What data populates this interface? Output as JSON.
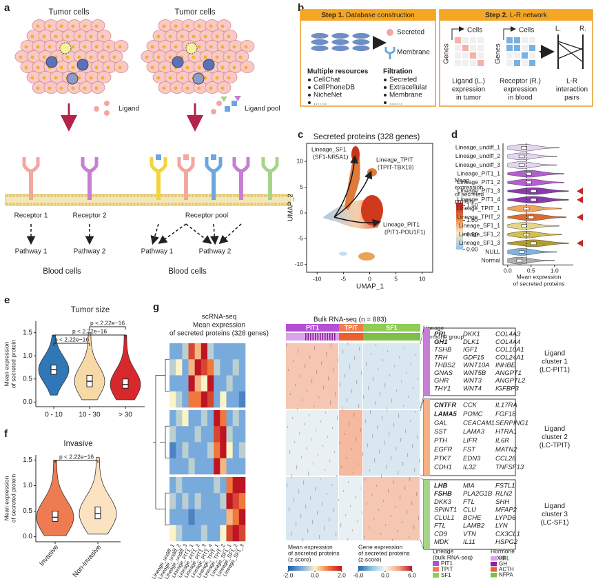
{
  "panel_a": {
    "label": "a",
    "left_title": "Tumor cells",
    "right_title": "Tumor cells",
    "ligand": "Ligand",
    "ligand_pool": "Ligand pool",
    "receptors": [
      "Receptor 1",
      "Receptor 2"
    ],
    "receptor_pool": "Receptor pool",
    "pathways_left": [
      "Pathway 1",
      "Pathway 2"
    ],
    "pathways_right": [
      "Pathway 1",
      "Pathway 2"
    ],
    "blood_left": "Blood cells",
    "blood_right": "Blood cells"
  },
  "panel_b": {
    "label": "b",
    "step1": {
      "prefix": "Step 1.",
      "title": "Database construction"
    },
    "secreted": "Secreted",
    "membrane": "Membrane",
    "resources_title": "Multiple resources",
    "resources": [
      "CellChat",
      "CellPhoneDB",
      "NicheNet",
      "......."
    ],
    "filtration_title": "Filtration",
    "filtration": [
      "Secreted",
      "Extracellular",
      "Membrane",
      "......."
    ],
    "step2": {
      "prefix": "Step 2.",
      "title": "L-R network"
    },
    "cells": [
      "Cells",
      "Cells"
    ],
    "genes": [
      "Genes",
      "Genes"
    ],
    "l": "L.",
    "r": "R.",
    "captions": [
      [
        "Ligand (L.)",
        "expression",
        "in tumor"
      ],
      [
        "Receptor (R.)",
        "expression",
        "in blood"
      ],
      [
        "L-R",
        "interaction",
        "pairs"
      ]
    ]
  },
  "panel_c": {
    "label": "c",
    "title": "Secreted proteins (328 genes)",
    "x_label": "UMAP_1",
    "y_label": "UMAP_2",
    "xlim": [
      -12,
      12
    ],
    "ylim": [
      -11.5,
      13.5
    ],
    "xticks": [
      -10,
      -5,
      0,
      5,
      10
    ],
    "yticks": [
      -10,
      -5,
      0,
      5,
      10
    ],
    "annotations": [
      [
        "Lineage_SF1",
        "(SF1-NR5A1)"
      ],
      [
        "Lineage_TPIT",
        "(TPIT-TBX19)"
      ],
      [
        "Lineage_PIT1",
        "(PIT1-POU1F1)"
      ]
    ],
    "colorbar": {
      "title": [
        "Mean",
        "expression",
        "of secreted",
        "protein"
      ],
      "lim": [
        0,
        1.6
      ],
      "ticks": [
        {
          "value": 0,
          "label": "0.00"
        },
        {
          "value": 0.5,
          "label": "0.50"
        },
        {
          "value": 1,
          "label": "1.00"
        },
        {
          "value": 1.5,
          "label": "1.50"
        }
      ]
    }
  },
  "panel_d": {
    "label": "d",
    "type": "violin",
    "categories": [
      "Lineage_undiff_1",
      "Lineage_undiff_2",
      "Lineage_undiff_3",
      "Lineage_PIT1_1",
      "Lineage_PIT1_2",
      "Lineage_PIT1_3",
      "Lineage_PIT1_4",
      "Lineage_TPIT_1",
      "Lineage_TPIT_2",
      "Lineage_SF1_1",
      "Lineage_SF1_2",
      "Lineage_SF1_3",
      "NULL",
      "Normal"
    ],
    "medians": [
      0.35,
      0.3,
      0.3,
      0.45,
      0.45,
      0.55,
      0.55,
      0.4,
      0.5,
      0.35,
      0.4,
      0.55,
      0.3,
      0.25
    ],
    "colors": [
      "#e4d6f2",
      "#e4d6f2",
      "#e4d6f2",
      "#b35fd0",
      "#b35fd0",
      "#8a3aaf",
      "#8a3aaf",
      "#f0a55e",
      "#e06a2b",
      "#e8d58a",
      "#d4bf4a",
      "#b59d2a",
      "#7fb3e0",
      "#b0b0b0"
    ],
    "flagged": [
      false,
      false,
      false,
      false,
      false,
      true,
      true,
      false,
      true,
      false,
      false,
      true,
      false,
      false
    ],
    "flag_color": "#c62828",
    "reference_line": 0.4,
    "xlim": [
      -0.1,
      1.4
    ],
    "xticks": [
      {
        "value": 0,
        "label": "0.0"
      },
      {
        "value": 0.5,
        "label": "0.5"
      },
      {
        "value": 1,
        "label": "1.0"
      }
    ],
    "x_label": [
      "Mean expression",
      "of secreted proteins"
    ]
  },
  "panel_e": {
    "label": "e",
    "type": "violin",
    "title": "Tumor size",
    "categories": [
      "0 - 10",
      "10 - 30",
      "> 30"
    ],
    "colors": [
      "#2f77b6",
      "#f7d9a8",
      "#d7292b"
    ],
    "min": [
      0.15,
      0.05,
      0.05
    ],
    "q1": [
      0.6,
      0.33,
      0.3
    ],
    "medians": [
      0.7,
      0.45,
      0.38
    ],
    "q3": [
      0.8,
      0.58,
      0.5
    ],
    "max": [
      1.45,
      1.5,
      1.45
    ],
    "y_label": [
      "Mean expression",
      "of secreted protein"
    ],
    "ylim": [
      -0.1,
      1.75
    ],
    "yticks": [
      {
        "value": 0,
        "label": "0.0"
      },
      {
        "value": 0.5,
        "label": "0.5"
      },
      {
        "value": 1,
        "label": "1.0"
      },
      {
        "value": 1.5,
        "label": "1.5"
      }
    ],
    "comparisons": [
      {
        "groups": [
          1,
          2
        ],
        "label": "p < 2.22e−16"
      },
      {
        "groups": [
          0,
          2
        ],
        "label": "p < 2.22e−16"
      },
      {
        "groups": [
          0,
          1
        ],
        "label": "p < 2.22e−16"
      }
    ]
  },
  "panel_f": {
    "label": "f",
    "type": "violin",
    "title": "Invasive",
    "categories": [
      "Invasive",
      "Non-invasive"
    ],
    "colors": [
      "#ef7b52",
      "#fbe3c2"
    ],
    "min": [
      0.02,
      0.05
    ],
    "q1": [
      0.3,
      0.35
    ],
    "medians": [
      0.38,
      0.45
    ],
    "q3": [
      0.5,
      0.58
    ],
    "max": [
      1.5,
      1.55
    ],
    "y_label": [
      "Mean expression",
      "of secreted protein"
    ],
    "ylim": [
      -0.1,
      1.6
    ],
    "yticks": [
      {
        "value": 0,
        "label": "0.0"
      },
      {
        "value": 0.5,
        "label": "0.5"
      },
      {
        "value": 1,
        "label": "1.0"
      },
      {
        "value": 1.5,
        "label": "1.5"
      }
    ],
    "comparisons": [
      {
        "groups": [
          0,
          1
        ],
        "label": "p < 2.22e−16"
      }
    ]
  },
  "panel_g": {
    "label": "g",
    "sc_title": [
      "scRNA-seq",
      "Mean expression",
      "of secreted proteins (328 genes)"
    ],
    "bulk_title": "Bulk RNA-seq (n = 883)",
    "lineages": [
      "PIT1",
      "TPIT",
      "SF1"
    ],
    "lineage_colors": [
      "#b64fd6",
      "#f07c4f",
      "#8fcd55"
    ],
    "lineage_row": "Lineage",
    "hormone_row": "Hormone group",
    "columns": [
      "Lineage_undiff_1",
      "Lineage_undiff_2",
      "Lineage_undiff_3",
      "Lineage_PIT1_1",
      "Lineage_PIT1_2",
      "Lineage_PIT1_3",
      "Lineage_PIT1_4",
      "Lineage_TPIT_1",
      "Lineage_TPIT_2",
      "Lineage_SF1_1",
      "Lineage_SF1_2",
      "Lineage_SF1_3"
    ],
    "sc_matrix": [
      [
        -1,
        -1,
        -0.5,
        1.5,
        0.5,
        2,
        -0.5,
        -1,
        -1,
        -1,
        -1,
        -1
      ],
      [
        -0.5,
        0,
        -1,
        0.5,
        2,
        1.5,
        1,
        -0.5,
        -1,
        -1,
        -0.5,
        -1
      ],
      [
        -1,
        -1,
        -1,
        2,
        0.5,
        0,
        2,
        -1,
        -1,
        -0.5,
        -1,
        -1
      ],
      [
        0,
        -0.5,
        -1,
        1,
        1,
        2,
        1.5,
        -1,
        0,
        -1,
        -1,
        -1.5
      ],
      [
        -1,
        -0.5,
        0,
        -1,
        -1,
        -0.5,
        -1,
        2,
        1,
        -1,
        -0.5,
        -1
      ],
      [
        -0.5,
        -1,
        -1,
        -1,
        -0.5,
        -1,
        -1,
        1.5,
        2,
        -0.5,
        -1,
        -1
      ],
      [
        -1.5,
        -1,
        -0.5,
        -1,
        -1,
        -1,
        -0.5,
        1,
        2,
        0,
        -1,
        -0.5
      ],
      [
        -1,
        -1,
        -1,
        -0.5,
        -1,
        -1,
        -1,
        2,
        0.5,
        -1,
        -1,
        -1
      ],
      [
        -1,
        -0.5,
        -1,
        -1,
        -1,
        -1,
        -1,
        -0.5,
        -1,
        1,
        2,
        2
      ],
      [
        -0.5,
        -1,
        -0.5,
        -1,
        -0.5,
        -1,
        -1,
        -1,
        -0.5,
        2,
        1.5,
        1
      ],
      [
        -1,
        -1,
        -1,
        -1.5,
        -1,
        -1,
        -1,
        -1,
        -1,
        0.5,
        1,
        2
      ],
      [
        0,
        -0.5,
        -1,
        -1,
        -1,
        -0.5,
        -1,
        -1,
        0,
        1.5,
        2,
        1.5
      ]
    ],
    "bulk_matrix": [
      [
        2,
        -1,
        -1
      ],
      [
        -0.5,
        2.5,
        -1
      ],
      [
        -1,
        -0.5,
        2
      ]
    ],
    "clusters": [
      {
        "genes": [
          [
            "PRL",
            "GH1",
            "TSHB",
            "TRH",
            "THBS2",
            "GNAS",
            "GHR",
            "THY1"
          ],
          [
            "DKK1",
            "DLK1",
            "IGF1",
            "GDF15",
            "WNT10A",
            "WNT5B",
            "WNT3",
            "WNT4"
          ],
          [
            "COL4A3",
            "COL4A4",
            "COL10A1",
            "COL24A1",
            "INHBE",
            "ANGPT1",
            "ANGPTL2",
            "IGFBP3"
          ]
        ],
        "label": [
          "Ligand",
          "cluster 1",
          "(LC-PIT1)"
        ]
      },
      {
        "genes": [
          [
            "CNTFR",
            "LAMA5",
            "GAL",
            "SST",
            "PTH",
            "EGFR",
            "PTK7",
            "CDH1"
          ],
          [
            "CCK",
            "POMC",
            "CEACAM1",
            "LAMA3",
            "LIFR",
            "FST",
            "EDN3",
            "IL32"
          ],
          [
            "IL17RA",
            "FGF18",
            "SERPING1",
            "HTRA1",
            "IL6R",
            "MATN2",
            "CCL28",
            "TNFSF13"
          ]
        ],
        "label": [
          "Ligand",
          "cluster 2",
          "(LC-TPIT)"
        ]
      },
      {
        "genes": [
          [
            "LHB",
            "FSHB",
            "DKK3",
            "SPINT1",
            "CLUL1",
            "FTL",
            "CD9",
            "MDK"
          ],
          [
            "MIA",
            "PLA2G1B",
            "FTL",
            "CLU",
            "BCHE",
            "LAMB2",
            "VTN",
            "IL11"
          ],
          [
            "FSTL1",
            "RLN2",
            "SHH",
            "MFAP2",
            "LYPD6",
            "LYN",
            "CX3CL1",
            "HSPG2"
          ]
        ],
        "label": [
          "Ligand",
          "cluster 3",
          "(LC-SF1)"
        ]
      }
    ],
    "sc_legend": {
      "title": [
        "Mean expression",
        "of secreted proteins",
        "(z-score)"
      ],
      "lim": [
        -2,
        2
      ],
      "ticks": [
        {
          "value": -2,
          "label": "-2.0"
        },
        {
          "value": 0,
          "label": "0.0"
        },
        {
          "value": 2,
          "label": "2.0"
        }
      ]
    },
    "bulk_legend": {
      "title": [
        "Gene expression",
        "of secreted proteins",
        "(z-score)"
      ],
      "lim": [
        -6,
        6
      ],
      "ticks": [
        {
          "value": -6,
          "label": "-6.0"
        },
        {
          "value": 0,
          "label": "0.0"
        },
        {
          "value": 6,
          "label": "6.0"
        }
      ]
    },
    "lineage_legend": {
      "title": [
        "Lineage",
        "(bulk RNA-seq)"
      ],
      "items": [
        "PIT1",
        "TPIT",
        "SF1"
      ]
    },
    "hormone_legend": {
      "title": [
        "Hormone",
        "group"
      ],
      "items": [
        "PRL",
        "GH",
        "ACTH",
        "NFPA"
      ],
      "colors": [
        "#dba3ea",
        "#8e1f9e",
        "#e9622d",
        "#7cc04b"
      ]
    }
  }
}
